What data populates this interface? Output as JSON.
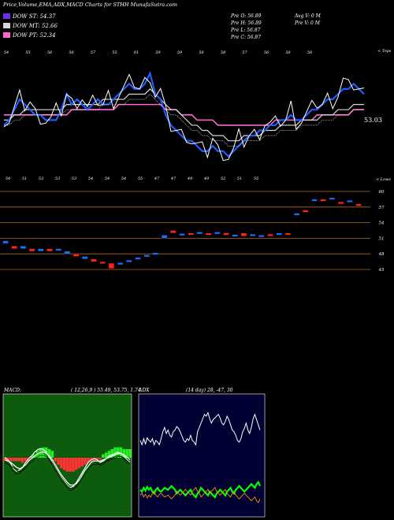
{
  "header": {
    "title": "Price,Volume,EMA,ADX,MACD Charts for STHH MunafaSutra.com",
    "legend": [
      {
        "label": "DOW ST: 54.37",
        "color": "#6b2ef0"
      },
      {
        "label": "DOW MT: 52.66",
        "color": "#d7d7d7"
      },
      {
        "label": "DOW PT: 52.34",
        "color": "#ff66cc"
      }
    ],
    "stats": {
      "prev_open": "Pre O: 56.89",
      "prev_high": "Pre H: 56.89",
      "prev_low": "Pre L: 56.87",
      "prev_close": "Pre C: 56.87",
      "avg_volume": "Avg V: 0  M",
      "prev_volume": "Pre V: 0  M"
    }
  },
  "colors": {
    "price": "#ffffff",
    "ema_short": "#1f5cff",
    "ema_mid": "#d7d7d7",
    "ema_long": "#ff66cc",
    "grid": "#b5651d",
    "candle_up": "#1e6bff",
    "candle_down": "#ff2020",
    "macd_bg": "#0d5c0d",
    "adx_bg": "#000033",
    "adx_plus": "#00ff00",
    "adx_minus": "#ff8c00"
  },
  "chart_data": [
    {
      "type": "line",
      "name": "price-ema",
      "title": "",
      "top_tag": "< Tops",
      "last_price_label": "53.03",
      "top_labels": [
        "54",
        "55",
        "56",
        "56",
        "57",
        "55",
        "61",
        "59",
        "59",
        "58",
        "58",
        "57",
        "56",
        "58",
        "56"
      ],
      "bottom_tag": "< Lows",
      "bottom_labels": [
        "54",
        "51",
        "53",
        "53",
        "53",
        "54",
        "54",
        "54",
        "55",
        "47",
        "47",
        "49",
        "49",
        "52",
        "51",
        "55"
      ],
      "x": [
        1,
        2,
        3,
        4,
        5,
        6,
        7,
        8,
        9,
        10,
        11,
        12,
        13,
        14,
        15,
        16,
        17,
        18,
        19,
        20,
        21,
        22,
        23,
        24,
        25,
        26,
        27,
        28,
        29,
        30,
        31,
        32,
        33,
        34,
        35,
        36,
        37,
        38,
        39,
        40,
        41,
        42,
        43,
        44,
        45,
        46,
        47,
        48,
        49,
        50,
        51,
        52,
        53,
        54,
        55,
        56,
        57,
        58,
        59,
        60,
        61,
        62,
        63,
        64,
        65,
        66,
        67,
        68,
        69,
        70
      ],
      "series": [
        {
          "name": "DOW ST",
          "values": [
            50,
            51,
            53,
            55,
            54,
            53,
            52,
            52,
            51,
            51,
            51,
            53,
            56,
            54,
            55,
            54,
            53,
            54,
            55,
            54,
            54,
            55,
            56,
            57,
            58,
            57,
            57,
            58,
            60,
            56,
            55,
            52,
            50,
            49,
            48,
            47,
            47,
            46,
            45,
            45,
            46,
            45,
            45,
            44,
            45,
            46,
            47,
            48,
            48,
            49,
            49,
            50,
            50,
            51,
            51,
            52,
            51,
            51,
            52,
            53,
            53,
            54,
            55,
            55,
            56,
            57,
            57,
            58,
            57,
            56
          ]
        },
        {
          "name": "DOW MT",
          "values": [
            51,
            51,
            52,
            52,
            53,
            53,
            53,
            53,
            53,
            53,
            53,
            53,
            54,
            54,
            54,
            54,
            54,
            54,
            54,
            55,
            55,
            55,
            55,
            55,
            56,
            56,
            56,
            56,
            57,
            56,
            55,
            54,
            53,
            53,
            52,
            51,
            50,
            50,
            49,
            49,
            48,
            48,
            48,
            47,
            47,
            47,
            48,
            48,
            48,
            48,
            49,
            49,
            49,
            50,
            50,
            50,
            50,
            51,
            51,
            51,
            51,
            52,
            52,
            52,
            53,
            53,
            53,
            54,
            54,
            54
          ]
        },
        {
          "name": "DOW PT",
          "values": [
            52,
            52,
            52,
            52,
            52,
            52,
            52,
            52,
            52,
            52,
            52,
            52,
            52,
            53,
            53,
            53,
            53,
            53,
            53,
            53,
            53,
            53,
            54,
            54,
            54,
            54,
            54,
            54,
            54,
            54,
            54,
            53,
            53,
            53,
            52,
            52,
            52,
            51,
            51,
            51,
            51,
            50,
            50,
            50,
            50,
            50,
            50,
            50,
            50,
            50,
            50,
            50,
            51,
            51,
            51,
            51,
            51,
            51,
            51,
            51,
            52,
            52,
            52,
            52,
            52,
            52,
            52,
            53,
            53,
            53
          ]
        }
      ]
    },
    {
      "type": "bar",
      "name": "daily-candles",
      "y_tag": "< Lows",
      "yticks": [
        "60",
        "57",
        "54",
        "51",
        "48",
        "45"
      ],
      "candles": [
        {
          "x": 1,
          "o": 50,
          "c": 50.5
        },
        {
          "x": 2,
          "o": 49.5,
          "c": 49
        },
        {
          "x": 3,
          "o": 49,
          "c": 49.5
        },
        {
          "x": 4,
          "o": 49,
          "c": 48.5
        },
        {
          "x": 5,
          "o": 48.5,
          "c": 49
        },
        {
          "x": 6,
          "o": 49,
          "c": 48.5
        },
        {
          "x": 7,
          "o": 49,
          "c": 49
        },
        {
          "x": 8,
          "o": 48,
          "c": 48.5
        },
        {
          "x": 9,
          "o": 48,
          "c": 47.5
        },
        {
          "x": 10,
          "o": 47,
          "c": 47.5
        },
        {
          "x": 11,
          "o": 47,
          "c": 46.5
        },
        {
          "x": 12,
          "o": 46.5,
          "c": 46.2
        },
        {
          "x": 13,
          "o": 46.2,
          "c": 45.2
        },
        {
          "x": 14,
          "o": 46,
          "c": 46.3
        },
        {
          "x": 15,
          "o": 46.5,
          "c": 46.8
        },
        {
          "x": 16,
          "o": 47,
          "c": 47.3
        },
        {
          "x": 17,
          "o": 47.5,
          "c": 47.8
        },
        {
          "x": 18,
          "o": 48,
          "c": 48.2
        },
        {
          "x": 19,
          "o": 51,
          "c": 51.6
        },
        {
          "x": 20,
          "o": 52.5,
          "c": 52
        },
        {
          "x": 21,
          "o": 51.8,
          "c": 51.9
        },
        {
          "x": 22,
          "o": 52,
          "c": 51.8
        },
        {
          "x": 23,
          "o": 52.1,
          "c": 52.2
        },
        {
          "x": 24,
          "o": 52,
          "c": 51.6
        },
        {
          "x": 25,
          "o": 52,
          "c": 52.2
        },
        {
          "x": 26,
          "o": 52,
          "c": 51.6
        },
        {
          "x": 27,
          "o": 51.6,
          "c": 51.7
        },
        {
          "x": 28,
          "o": 52,
          "c": 51.4
        },
        {
          "x": 29,
          "o": 51.6,
          "c": 51.8
        },
        {
          "x": 30,
          "o": 51.6,
          "c": 51.6
        },
        {
          "x": 31,
          "o": 51.8,
          "c": 51.7
        },
        {
          "x": 32,
          "o": 52,
          "c": 52
        },
        {
          "x": 33,
          "o": 52,
          "c": 51.9
        },
        {
          "x": 34,
          "o": 55.7,
          "c": 55.8
        },
        {
          "x": 35,
          "o": 56.4,
          "c": 56
        },
        {
          "x": 36,
          "o": 58.3,
          "c": 58.5
        },
        {
          "x": 37,
          "o": 58.5,
          "c": 58.2
        },
        {
          "x": 38,
          "o": 58.6,
          "c": 58.8
        },
        {
          "x": 39,
          "o": 58,
          "c": 57.6
        },
        {
          "x": 40,
          "o": 58,
          "c": 58.3
        },
        {
          "x": 41,
          "o": 57.6,
          "c": 57.2
        }
      ]
    },
    {
      "type": "area",
      "name": "macd",
      "label": "MACD:",
      "params": "( 12,26,9 ) 55.49,  53.75,  1.74",
      "histogram": [
        -2,
        -2,
        -2,
        -2,
        -2,
        -2,
        -3,
        -2,
        -2,
        1,
        2,
        4,
        5,
        6,
        6,
        5,
        4,
        -2,
        -4,
        -6,
        -7,
        -8,
        -8,
        -8,
        -7,
        -6,
        -5,
        -4,
        -3,
        -2,
        -2,
        -1,
        -1,
        2,
        3,
        4,
        5,
        6,
        6,
        6,
        5,
        5,
        5
      ],
      "lines": [
        {
          "name": "macd",
          "values": [
            44,
            46,
            49,
            53,
            55,
            54,
            52,
            48,
            45,
            43,
            40,
            38,
            37,
            38,
            40,
            44,
            48,
            52,
            56,
            60,
            63,
            66,
            68,
            67,
            64,
            60,
            56,
            52,
            48,
            46,
            45,
            46,
            48,
            47,
            45,
            43,
            42,
            41,
            40,
            41,
            43,
            46,
            48
          ]
        },
        {
          "name": "signal",
          "values": [
            46,
            47,
            48,
            50,
            52,
            53,
            52,
            50,
            47,
            45,
            43,
            41,
            40,
            40,
            41,
            43,
            46,
            50,
            54,
            58,
            61,
            64,
            66,
            66,
            65,
            62,
            58,
            54,
            51,
            48,
            47,
            47,
            47,
            46,
            45,
            44,
            43,
            42,
            41,
            41,
            42,
            44,
            46
          ]
        }
      ]
    },
    {
      "type": "line",
      "name": "adx",
      "label": "ADX",
      "params": "(14 day) 28,  -47,  30",
      "series": [
        {
          "name": "adx",
          "values": [
            60,
            55,
            62,
            56,
            63,
            60,
            58,
            62,
            55,
            60,
            58,
            55,
            62,
            70,
            75,
            68,
            72,
            66,
            64,
            70,
            72,
            76,
            74,
            70,
            65,
            60,
            58,
            62,
            60,
            66,
            60,
            58,
            55,
            70,
            75,
            80,
            85,
            90,
            88,
            92,
            85,
            80,
            84,
            86,
            88,
            90,
            86,
            80,
            78,
            82,
            88,
            84,
            78,
            72,
            70,
            66,
            60,
            58,
            62,
            70,
            74,
            80,
            72,
            68,
            75,
            85,
            90,
            84,
            78,
            72
          ]
        },
        {
          "name": "+di",
          "values": [
            22,
            20,
            24,
            21,
            25,
            22,
            24,
            20,
            18,
            22,
            24,
            21,
            20,
            22,
            24,
            23,
            22,
            24,
            26,
            24,
            22,
            18,
            20,
            22,
            20,
            18,
            16,
            18,
            20,
            22,
            18,
            16,
            14,
            18,
            20,
            24,
            22,
            20,
            18,
            16,
            20,
            18,
            16,
            14,
            18,
            20,
            22,
            20,
            18,
            16,
            20,
            22,
            24,
            20,
            18,
            22,
            24,
            26,
            24,
            22,
            20,
            22,
            24,
            26,
            28,
            26,
            24,
            28,
            30,
            26
          ]
        },
        {
          "name": "-di",
          "values": [
            18,
            20,
            16,
            19,
            15,
            18,
            16,
            20,
            22,
            18,
            16,
            19,
            20,
            18,
            16,
            17,
            18,
            16,
            14,
            16,
            18,
            22,
            20,
            18,
            20,
            22,
            24,
            22,
            20,
            18,
            22,
            24,
            26,
            22,
            20,
            16,
            18,
            20,
            22,
            24,
            20,
            22,
            24,
            26,
            22,
            20,
            18,
            20,
            22,
            24,
            20,
            18,
            16,
            20,
            22,
            18,
            16,
            14,
            16,
            18,
            20,
            18,
            16,
            14,
            12,
            14,
            16,
            12,
            10,
            14
          ]
        }
      ]
    }
  ]
}
